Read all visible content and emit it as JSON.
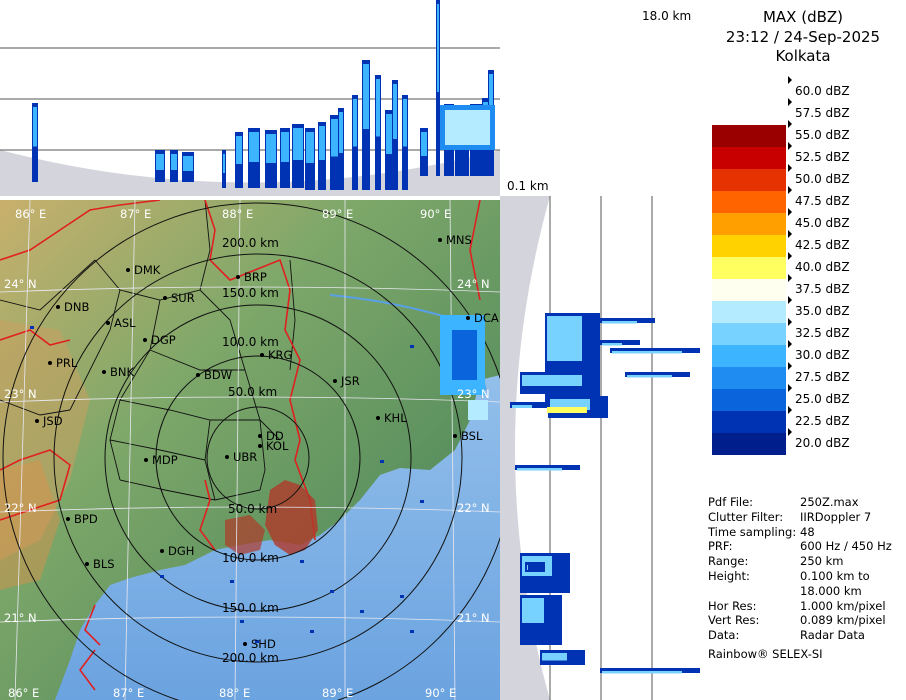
{
  "header": {
    "product": "MAX (dBZ)",
    "datetime": "23:12 / 24-Sep-2025",
    "station": "Kolkata"
  },
  "profile_scale": {
    "top": "18.0 km",
    "bottom": "0.1 km"
  },
  "legend": {
    "entries": [
      {
        "label": "60.0 dBZ",
        "color": "#ffffff"
      },
      {
        "label": "57.5 dBZ",
        "color": "#ffffff"
      },
      {
        "label": "55.0 dBZ",
        "color": "#9b0000"
      },
      {
        "label": "52.5 dBZ",
        "color": "#c80000"
      },
      {
        "label": "50.0 dBZ",
        "color": "#e63200"
      },
      {
        "label": "47.5 dBZ",
        "color": "#ff6400"
      },
      {
        "label": "45.0 dBZ",
        "color": "#ffa000"
      },
      {
        "label": "42.5 dBZ",
        "color": "#ffd200"
      },
      {
        "label": "40.0 dBZ",
        "color": "#ffff60"
      },
      {
        "label": "37.5 dBZ",
        "color": "#fffff0"
      },
      {
        "label": "35.0 dBZ",
        "color": "#b4ebff"
      },
      {
        "label": "32.5 dBZ",
        "color": "#78d2ff"
      },
      {
        "label": "30.0 dBZ",
        "color": "#3cb4ff"
      },
      {
        "label": "27.5 dBZ",
        "color": "#1e8cf0"
      },
      {
        "label": "25.0 dBZ",
        "color": "#0a64dc"
      },
      {
        "label": "22.5 dBZ",
        "color": "#0032b4"
      },
      {
        "label": "20.0 dBZ",
        "color": "#001e8c"
      }
    ]
  },
  "info": [
    {
      "key": "Pdf File:",
      "value": "250Z.max"
    },
    {
      "key": "Clutter Filter:",
      "value": "IIRDoppler 7"
    },
    {
      "key": "Time sampling:",
      "value": "48"
    },
    {
      "key": "PRF:",
      "value": "600 Hz / 450 Hz"
    },
    {
      "key": "Range:",
      "value": "250 km"
    },
    {
      "key": "Height:",
      "value": "0.100 km to"
    },
    {
      "key": "",
      "value": "18.000 km"
    },
    {
      "key": "Hor Res:",
      "value": "1.000 km/pixel"
    },
    {
      "key": "Vert Res:",
      "value": "0.089 km/pixel"
    },
    {
      "key": "Data:",
      "value": "Radar Data"
    }
  ],
  "footer": "Rainbow® SELEX-SI",
  "map": {
    "lon_labels": [
      "86° E",
      "87° E",
      "88° E",
      "89° E",
      "90° E"
    ],
    "lat_labels": [
      "24° N",
      "23° N",
      "22° N",
      "21° N"
    ],
    "range_rings": [
      "50.0 km",
      "100.0 km",
      "150.0 km",
      "200.0 km",
      "50.0 km",
      "100.0 km",
      "150.0 km",
      "200.0 km"
    ],
    "cities": [
      "MNS",
      "DMK",
      "BRP",
      "SUR",
      "DNB",
      "ASL",
      "DGP",
      "DCA",
      "KRG",
      "PRL",
      "BNK",
      "BDW",
      "JSR",
      "JSD",
      "KHL",
      "DD",
      "KOL",
      "BSL",
      "MDP",
      "UBR",
      "BPD",
      "DGH",
      "BLS",
      "SHD"
    ]
  }
}
